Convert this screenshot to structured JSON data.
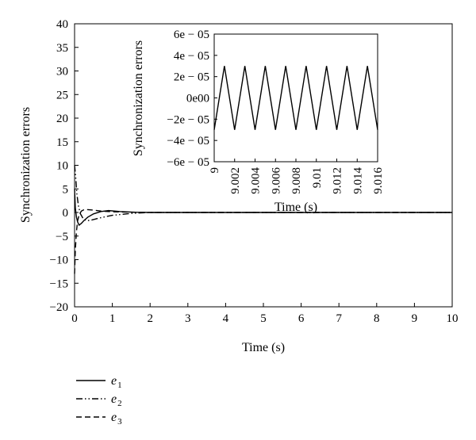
{
  "chart_data": [
    {
      "type": "line",
      "title": "",
      "xlabel": "Time (s)",
      "ylabel": "Synchronization errors",
      "xlim": [
        0,
        10
      ],
      "ylim": [
        -20,
        40
      ],
      "xticks": [
        "0",
        "1",
        "2",
        "3",
        "4",
        "5",
        "6",
        "7",
        "8",
        "9",
        "10"
      ],
      "yticks": [
        "−20",
        "−15",
        "−10",
        "−5",
        "0",
        "5",
        "10",
        "15",
        "20",
        "25",
        "30",
        "35",
        "40"
      ],
      "grid": false,
      "legend_position": "below",
      "series": [
        {
          "name": "e1",
          "legend_base": "e",
          "legend_sub": "1",
          "style": "solid",
          "x": [
            0,
            0.02,
            0.05,
            0.08,
            0.12,
            0.18,
            0.25,
            0.35,
            0.5,
            0.7,
            0.9,
            1.2,
            1.6,
            2.0,
            3.0,
            5.0,
            10.0
          ],
          "y": [
            5,
            1.0,
            -1.0,
            -2.0,
            -2.7,
            -2.3,
            -1.7,
            -1.0,
            -0.3,
            0.2,
            0.4,
            0.2,
            0.05,
            0.0,
            0.0,
            0.0,
            0.0
          ]
        },
        {
          "name": "e2",
          "legend_base": "e",
          "legend_sub": "2",
          "style": "dash-dot-dot",
          "x": [
            0,
            0.03,
            0.06,
            0.1,
            0.15,
            0.22,
            0.3,
            0.4,
            0.5,
            0.7,
            1.0,
            1.5,
            2.0,
            3.0,
            10.0
          ],
          "y": [
            10,
            7.5,
            4.0,
            1.5,
            -0.2,
            -1.2,
            -1.7,
            -1.7,
            -1.5,
            -1.1,
            -0.6,
            -0.2,
            0.0,
            0.0,
            0.0
          ],
          "inset_x": [
            9.0,
            9.001,
            9.002,
            9.003,
            9.004,
            9.005,
            9.006,
            9.007,
            9.008,
            9.009,
            9.01,
            9.011,
            9.012,
            9.013,
            9.014,
            9.015,
            9.016
          ],
          "inset_y": [
            -3e-05,
            3e-05,
            -3e-05,
            3e-05,
            -3e-05,
            3e-05,
            -3e-05,
            3e-05,
            -3e-05,
            3e-05,
            -3e-05,
            3e-05,
            -3e-05,
            3e-05,
            -3e-05,
            3e-05,
            -3e-05
          ]
        },
        {
          "name": "e3",
          "legend_base": "e",
          "legend_sub": "3",
          "style": "dashed",
          "x": [
            0,
            0.02,
            0.05,
            0.08,
            0.12,
            0.18,
            0.25,
            0.35,
            0.5,
            0.7,
            1.0,
            1.5,
            2.0,
            3.0,
            10.0
          ],
          "y": [
            -13,
            -8,
            -4,
            -1.8,
            -0.5,
            0.3,
            0.6,
            0.6,
            0.5,
            0.3,
            0.15,
            0.05,
            0.0,
            0.0,
            0.0
          ]
        }
      ]
    },
    {
      "type": "line",
      "title": "",
      "xlabel": "Time (s)",
      "ylabel": "Synchronization errors",
      "xlim": [
        9.0,
        9.016
      ],
      "ylim": [
        -6e-05,
        6e-05
      ],
      "xticks": [
        "9",
        "9.002",
        "9.004",
        "9.006",
        "9.008",
        "9.01",
        "9.012",
        "9.014",
        "9.016"
      ],
      "yticks": [
        "−6e − 05",
        "−4e − 05",
        "−2e − 05",
        "0e00",
        "2e − 05",
        "4e − 05",
        "6e − 05"
      ],
      "grid": false
    }
  ]
}
